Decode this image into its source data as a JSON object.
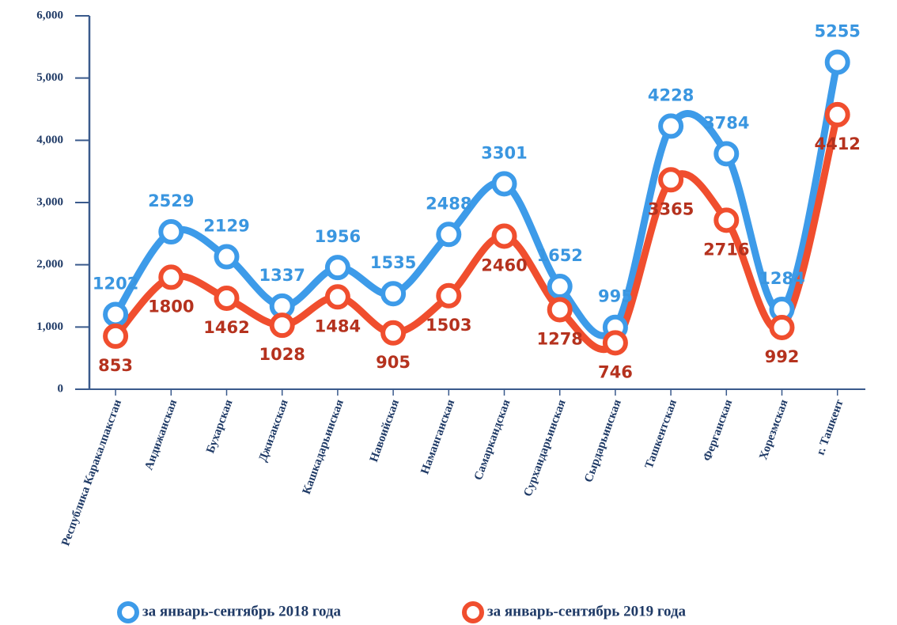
{
  "chart_data": {
    "type": "line",
    "categories": [
      "Республика Каракалпакстан",
      "Андижанская",
      "Бухарская",
      "Джизакская",
      "Кашкадарьинская",
      "Навоийская",
      "Наманганская",
      "Самаркандская",
      "Сурхандарьинская",
      "Сырдарьинская",
      "Ташкентская",
      "Ферганская",
      "Хорезмская",
      "г. Ташкент"
    ],
    "series": [
      {
        "name": "за январь-сентябрь 2018 года",
        "color": "#3d9be9",
        "label_color": "#3a96e0",
        "values": [
          1202,
          2529,
          2129,
          1337,
          1956,
          1535,
          2488,
          3301,
          1652,
          995,
          4228,
          3784,
          1284,
          5255
        ]
      },
      {
        "name": "за январь-сентябрь 2019 года",
        "color": "#f04e2e",
        "label_color": "#b5321e",
        "values": [
          853,
          1800,
          1462,
          1028,
          1484,
          905,
          1503,
          2460,
          1278,
          746,
          3365,
          2716,
          992,
          4412
        ]
      }
    ],
    "ylim": [
      0,
      6000
    ],
    "yticks": [
      0,
      {
        "value": 1000,
        "label": "1,000"
      },
      {
        "value": 2000,
        "label": "2,000"
      },
      {
        "value": 3000,
        "label": "3,000"
      },
      {
        "value": 4000,
        "label": "4,000"
      },
      {
        "value": 5000,
        "label": "5,000"
      },
      {
        "value": 6000,
        "label": "6,000"
      }
    ],
    "legend": "bottom"
  }
}
